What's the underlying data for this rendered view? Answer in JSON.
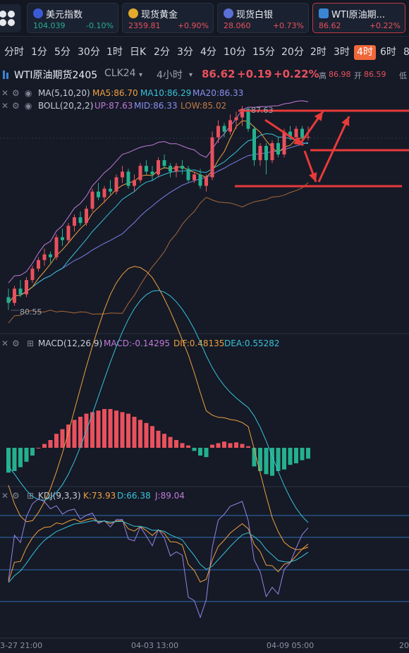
{
  "tickers": [
    {
      "name": "美元指数",
      "price": "104.039",
      "change": "-0.10%",
      "dir": "dn",
      "flag": "us-flag-icon",
      "flag_color": "#3b5bd6"
    },
    {
      "name": "现货黄金",
      "price": "2359.81",
      "change": "+0.90%",
      "dir": "up",
      "flag": "gold-icon",
      "flag_color": "#e2a92d"
    },
    {
      "name": "现货白银",
      "price": "28.060",
      "change": "+0.73%",
      "dir": "up",
      "flag": "silver-icon",
      "flag_color": "#5b6fd6"
    },
    {
      "name": "WTI原油期...",
      "price": "86.62",
      "change": "+0.22%",
      "dir": "up",
      "flag": "oil-icon",
      "flag_color": "#3a86d4"
    }
  ],
  "timeframes": [
    "分时",
    "1分",
    "5分",
    "30分",
    "1时",
    "日K",
    "2分",
    "3分",
    "4分",
    "10分",
    "15分",
    "20分",
    "2时",
    "3时",
    "4时",
    "6时",
    "8"
  ],
  "active_timeframe": "4时",
  "instrument": {
    "name": "WTI原油期货2405",
    "code": "CLK24",
    "period": "4小时",
    "price": "86.62",
    "change": "+0.19",
    "change_pct": "+0.22%",
    "high_label": "高",
    "high": "86.98",
    "open_label": "开",
    "open": "86.59",
    "low_label": "低"
  },
  "ma_legend": {
    "label": "MA(5,10,20)",
    "ma5": "MA5:86.70",
    "ma10": "MA10:86.29",
    "ma20": "MA20:86.33"
  },
  "boll_legend": {
    "label": "BOLL(20,2,2)",
    "up": "UP:87.63",
    "mid": "MID:86.33",
    "low": "LOW:85.02"
  },
  "macd_legend": {
    "label": "MACD(12,26,9)",
    "macd": "MACD:-0.14295",
    "dif": "DIF:0.48135",
    "dea": "DEA:0.55282"
  },
  "kdj_legend": {
    "label": "KDJ(9,3,3)",
    "k": "K:73.93",
    "d": "D:66.38",
    "j": "J:89.04"
  },
  "price_labels": {
    "high_mark": "87.63",
    "low_mark": "80.55"
  },
  "time_axis": [
    "3-27 21:00",
    "04-03 13:00",
    "04-09 05:00",
    "20"
  ],
  "colors": {
    "up": "#e8515d",
    "down": "#25b08f",
    "ma5": "#f0a040",
    "ma10": "#38c2d8",
    "ma20": "#7a7fe6",
    "boll_up": "#c07ad8",
    "boll_low": "#a8683a",
    "annotation": "#e83a3a"
  },
  "chart_data": {
    "type": "candlestick",
    "symbol": "CLK24",
    "period": "4H",
    "ohlc": [
      [
        81.0,
        81.3,
        80.55,
        80.8
      ],
      [
        80.8,
        81.4,
        80.7,
        81.3
      ],
      [
        81.3,
        81.6,
        81.0,
        81.1
      ],
      [
        81.1,
        81.7,
        81.0,
        81.6
      ],
      [
        81.6,
        82.1,
        81.5,
        82.0
      ],
      [
        82.0,
        82.4,
        81.9,
        82.3
      ],
      [
        82.3,
        82.7,
        82.1,
        82.5
      ],
      [
        82.5,
        82.6,
        82.2,
        82.4
      ],
      [
        82.4,
        83.2,
        82.3,
        83.1
      ],
      [
        83.1,
        83.4,
        82.8,
        83.0
      ],
      [
        83.0,
        83.6,
        82.9,
        83.5
      ],
      [
        83.5,
        83.9,
        83.3,
        83.8
      ],
      [
        83.8,
        84.0,
        83.5,
        83.6
      ],
      [
        83.6,
        84.2,
        83.5,
        84.1
      ],
      [
        84.1,
        84.8,
        84.0,
        84.7
      ],
      [
        84.7,
        85.0,
        84.4,
        84.5
      ],
      [
        84.5,
        84.9,
        84.3,
        84.8
      ],
      [
        84.8,
        85.1,
        84.6,
        84.7
      ],
      [
        84.7,
        85.3,
        84.6,
        85.2
      ],
      [
        85.2,
        85.6,
        85.0,
        85.4
      ],
      [
        85.4,
        85.5,
        84.8,
        84.9
      ],
      [
        84.9,
        85.3,
        84.7,
        85.1
      ],
      [
        85.1,
        85.7,
        85.0,
        85.6
      ],
      [
        85.6,
        85.8,
        85.3,
        85.4
      ],
      [
        85.4,
        85.6,
        85.1,
        85.3
      ],
      [
        85.3,
        85.9,
        85.2,
        85.8
      ],
      [
        85.8,
        86.0,
        85.5,
        85.6
      ],
      [
        85.6,
        85.7,
        85.2,
        85.4
      ],
      [
        85.4,
        85.7,
        85.2,
        85.6
      ],
      [
        85.6,
        85.8,
        85.3,
        85.5
      ],
      [
        85.5,
        85.6,
        85.0,
        85.1
      ],
      [
        85.1,
        85.4,
        85.0,
        85.3
      ],
      [
        85.3,
        85.5,
        84.8,
        84.9
      ],
      [
        84.9,
        85.3,
        84.7,
        85.2
      ],
      [
        85.2,
        86.8,
        85.1,
        86.6
      ],
      [
        86.6,
        87.2,
        86.4,
        87.0
      ],
      [
        87.0,
        87.1,
        86.6,
        86.8
      ],
      [
        86.8,
        87.4,
        86.7,
        87.2
      ],
      [
        87.2,
        87.5,
        86.9,
        87.3
      ],
      [
        87.3,
        87.7,
        87.0,
        87.6
      ],
      [
        87.6,
        87.63,
        86.8,
        86.9
      ],
      [
        86.9,
        87.0,
        85.6,
        85.8
      ],
      [
        85.8,
        86.4,
        85.6,
        86.3
      ],
      [
        86.3,
        86.4,
        85.3,
        85.8
      ],
      [
        85.8,
        86.5,
        85.7,
        86.4
      ],
      [
        86.4,
        86.6,
        85.9,
        86.0
      ],
      [
        86.0,
        86.9,
        85.9,
        86.8
      ],
      [
        86.8,
        87.0,
        86.5,
        86.6
      ],
      [
        86.6,
        87.0,
        86.4,
        86.9
      ],
      [
        86.9,
        87.0,
        86.5,
        86.6
      ],
      [
        86.59,
        86.98,
        86.5,
        86.62
      ]
    ],
    "annotations": [
      "horizontal line near 87.6",
      "horizontal line near 86.3",
      "horizontal line near 85.5",
      "arrows indicating drop then rally"
    ]
  },
  "macd_data": [
    -0.32,
    -0.3,
    -0.25,
    -0.18,
    -0.1,
    0.0,
    0.05,
    0.1,
    0.18,
    0.24,
    0.3,
    0.36,
    0.4,
    0.44,
    0.46,
    0.48,
    0.5,
    0.5,
    0.48,
    0.46,
    0.44,
    0.4,
    0.36,
    0.32,
    0.28,
    0.22,
    0.18,
    0.14,
    0.1,
    0.06,
    0.03,
    -0.04,
    -0.1,
    -0.12,
    0.04,
    0.06,
    0.08,
    0.06,
    0.07,
    0.05,
    0.02,
    -0.24,
    -0.3,
    -0.34,
    -0.36,
    -0.3,
    -0.28,
    -0.22,
    -0.2,
    -0.16,
    -0.14
  ]
}
